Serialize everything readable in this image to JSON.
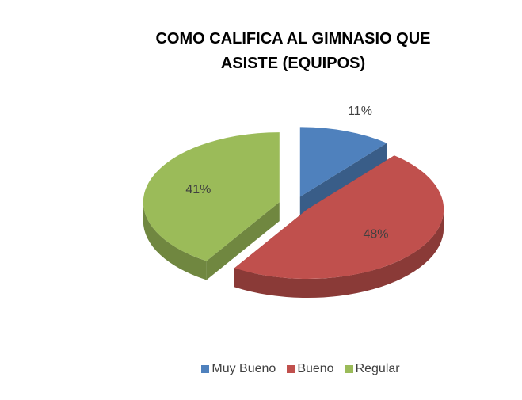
{
  "chart_data": {
    "type": "pie",
    "title": "COMO CALIFICA AL GIMNASIO QUE ASISTE (EQUIPOS)",
    "categories": [
      "Muy Bueno",
      "Bueno",
      "Regular"
    ],
    "values": [
      11,
      48,
      41
    ],
    "value_labels": [
      "11%",
      "48%",
      "41%"
    ],
    "colors": [
      "#4f81bd",
      "#c0504d",
      "#9bbb59"
    ],
    "legend": "bottom"
  }
}
